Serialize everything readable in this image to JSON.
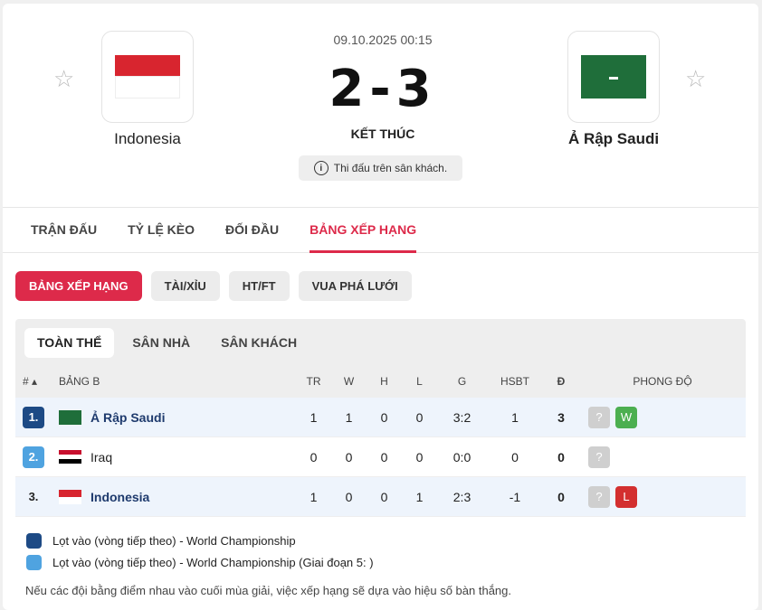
{
  "match": {
    "date": "09.10.2025 00:15",
    "score": "2-3",
    "status": "KẾT THÚC",
    "note": "Thi đấu trên sân khách.",
    "home": {
      "name": "Indonesia",
      "flag": "indonesia-flag"
    },
    "away": {
      "name": "Ả Rập Saudi",
      "flag": "saudi-arabia-flag"
    }
  },
  "tabs": [
    "TRẬN ĐẤU",
    "TỶ LỆ KÈO",
    "ĐỐI ĐẦU",
    "BẢNG XẾP HẠNG"
  ],
  "pills": [
    "BẢNG XẾP HẠNG",
    "TÀI/XỈU",
    "HT/FT",
    "VUA PHÁ LƯỚI"
  ],
  "subtabs": [
    "TOÀN THỂ",
    "SÂN NHÀ",
    "SÂN KHÁCH"
  ],
  "headers": {
    "rank": "#",
    "group": "BẢNG B",
    "tr": "TR",
    "w": "W",
    "h": "H",
    "l": "L",
    "g": "G",
    "hsbt": "HSBT",
    "d": "Đ",
    "form": "PHONG ĐỘ"
  },
  "rows": [
    {
      "rank": "1.",
      "team": "Ả Rập Saudi",
      "tr": "1",
      "w": "1",
      "h": "0",
      "l": "0",
      "g": "3:2",
      "hsbt": "1",
      "d": "3",
      "form": [
        "?",
        "W"
      ]
    },
    {
      "rank": "2.",
      "team": "Iraq",
      "tr": "0",
      "w": "0",
      "h": "0",
      "l": "0",
      "g": "0:0",
      "hsbt": "0",
      "d": "0",
      "form": [
        "?"
      ]
    },
    {
      "rank": "3.",
      "team": "Indonesia",
      "tr": "1",
      "w": "0",
      "h": "0",
      "l": "1",
      "g": "2:3",
      "hsbt": "-1",
      "d": "0",
      "form": [
        "?",
        "L"
      ]
    }
  ],
  "legend": [
    {
      "label": "Lọt vào (vòng tiếp theo) - World Championship",
      "color": "#1d4a85"
    },
    {
      "label": "Lọt vào (vòng tiếp theo) - World Championship (Giai đoạn 5: )",
      "color": "#4fa3e0"
    }
  ],
  "footnote": "Nếu các đội bằng điểm nhau vào cuối mùa giải, việc xếp hạng sẽ dựa vào hiệu số bàn thắng.",
  "colors": {
    "accent": "#dd2a4a",
    "win": "#4caf50",
    "loss": "#d32f2f",
    "unknown": "#cfcfcf"
  }
}
